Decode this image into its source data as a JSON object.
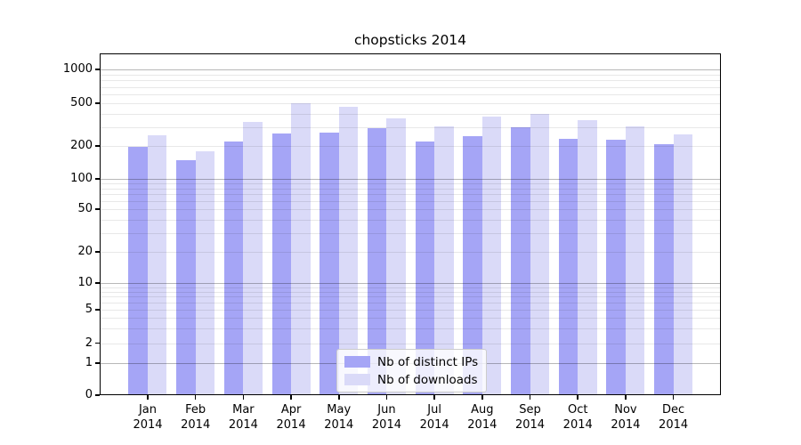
{
  "chart_data": {
    "type": "bar",
    "title": "chopsticks 2014",
    "categories": [
      "Jan 2014",
      "Feb 2014",
      "Mar 2014",
      "Apr 2014",
      "May 2014",
      "Jun 2014",
      "Jul 2014",
      "Aug 2014",
      "Sep 2014",
      "Oct 2014",
      "Nov 2014",
      "Dec 2014"
    ],
    "series": [
      {
        "name": "Nb of distinct IPs",
        "color": "#a5a5f6",
        "values": [
          195,
          148,
          218,
          262,
          264,
          291,
          220,
          249,
          297,
          235,
          228,
          206
        ]
      },
      {
        "name": "Nb of downloads",
        "color": "#dadaf8",
        "values": [
          252,
          178,
          332,
          500,
          467,
          362,
          303,
          372,
          398,
          350,
          306,
          258
        ]
      }
    ],
    "xlabel": "",
    "ylabel": "",
    "yscale": "symlog",
    "yticks": [
      0,
      1,
      2,
      5,
      10,
      20,
      50,
      100,
      200,
      500,
      1000
    ],
    "ylim": [
      0,
      1400
    ],
    "grid": true,
    "legend": {
      "position": "lower-center",
      "labels": [
        "Nb of distinct IPs",
        "Nb of downloads"
      ]
    },
    "colors": {
      "bar_distinct_ips": "#a5a5f6",
      "bar_downloads": "#dadaf8",
      "major_grid": "rgba(0,0,0,0.28)",
      "minor_grid": "rgba(0,0,0,0.09)",
      "spine": "#000000",
      "legend_border": "#cccccc"
    }
  }
}
